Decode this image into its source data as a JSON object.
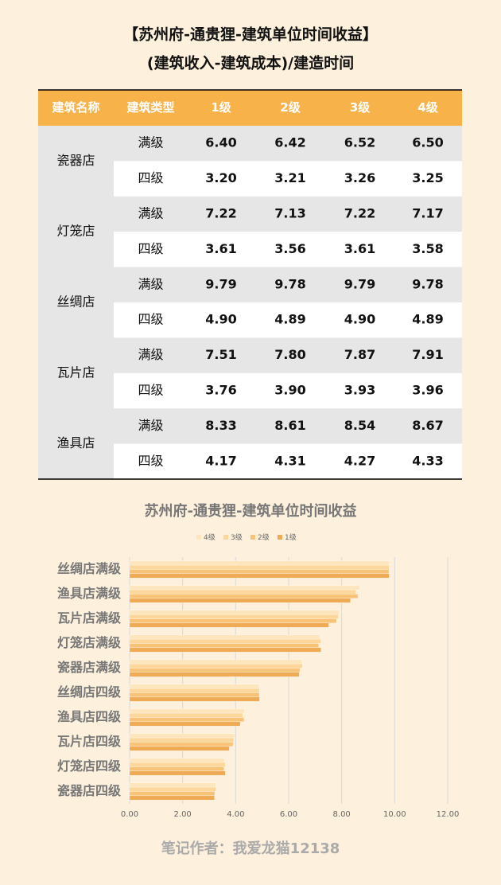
{
  "header": {
    "title": "【苏州府-通贵狸-建筑单位时间收益】",
    "subtitle": "(建筑收入-建筑成本)/建造时间"
  },
  "table": {
    "columns": [
      "建筑名称",
      "建筑类型",
      "1级",
      "2级",
      "3级",
      "4级"
    ],
    "groups": [
      {
        "name": "瓷器店",
        "rows": [
          [
            "满级",
            "6.40",
            "6.42",
            "6.52",
            "6.50"
          ],
          [
            "四级",
            "3.20",
            "3.21",
            "3.26",
            "3.25"
          ]
        ]
      },
      {
        "name": "灯笼店",
        "rows": [
          [
            "满级",
            "7.22",
            "7.13",
            "7.22",
            "7.17"
          ],
          [
            "四级",
            "3.61",
            "3.56",
            "3.61",
            "3.58"
          ]
        ]
      },
      {
        "name": "丝绸店",
        "rows": [
          [
            "满级",
            "9.79",
            "9.78",
            "9.79",
            "9.78"
          ],
          [
            "四级",
            "4.90",
            "4.89",
            "4.90",
            "4.89"
          ]
        ]
      },
      {
        "name": "瓦片店",
        "rows": [
          [
            "满级",
            "7.51",
            "7.80",
            "7.87",
            "7.91"
          ],
          [
            "四级",
            "3.76",
            "3.90",
            "3.93",
            "3.96"
          ]
        ]
      },
      {
        "name": "渔具店",
        "rows": [
          [
            "满级",
            "8.33",
            "8.61",
            "8.54",
            "8.67"
          ],
          [
            "四级",
            "4.17",
            "4.31",
            "4.27",
            "4.33"
          ]
        ]
      }
    ]
  },
  "chart_data": {
    "type": "bar",
    "title": "苏州府-通贵狸-建筑单位时间收益",
    "categories": [
      "丝绸店满级",
      "渔具店满级",
      "瓦片店满级",
      "灯笼店满级",
      "瓷器店满级",
      "丝绸店四级",
      "渔具店四级",
      "瓦片店四级",
      "灯笼店四级",
      "瓷器店四级"
    ],
    "series": [
      {
        "name": "4级",
        "color": "#fde6bd",
        "values": [
          9.78,
          8.67,
          7.91,
          7.17,
          6.5,
          4.89,
          4.33,
          3.96,
          3.58,
          3.25
        ]
      },
      {
        "name": "3级",
        "color": "#fcd69a",
        "values": [
          9.79,
          8.54,
          7.87,
          7.22,
          6.52,
          4.9,
          4.27,
          3.93,
          3.61,
          3.26
        ]
      },
      {
        "name": "2级",
        "color": "#f8c277",
        "values": [
          9.78,
          8.61,
          7.8,
          7.13,
          6.42,
          4.89,
          4.31,
          3.9,
          3.56,
          3.21
        ]
      },
      {
        "name": "1级",
        "color": "#eeaa55",
        "values": [
          9.79,
          8.33,
          7.51,
          7.22,
          6.4,
          4.9,
          4.17,
          3.76,
          3.61,
          3.2
        ]
      }
    ],
    "xlim": [
      0,
      12
    ],
    "xticks": [
      {
        "value": 0,
        "label": "0.00"
      },
      {
        "value": 2,
        "label": "2.00"
      },
      {
        "value": 4,
        "label": "4.00"
      },
      {
        "value": 6,
        "label": "6.00"
      },
      {
        "value": 8,
        "label": "8.00"
      },
      {
        "value": 10,
        "label": "10.00"
      },
      {
        "value": 12,
        "label": "12.00"
      }
    ],
    "grid": true
  },
  "footer": {
    "text": "笔记作者：我爱龙猫12138"
  }
}
